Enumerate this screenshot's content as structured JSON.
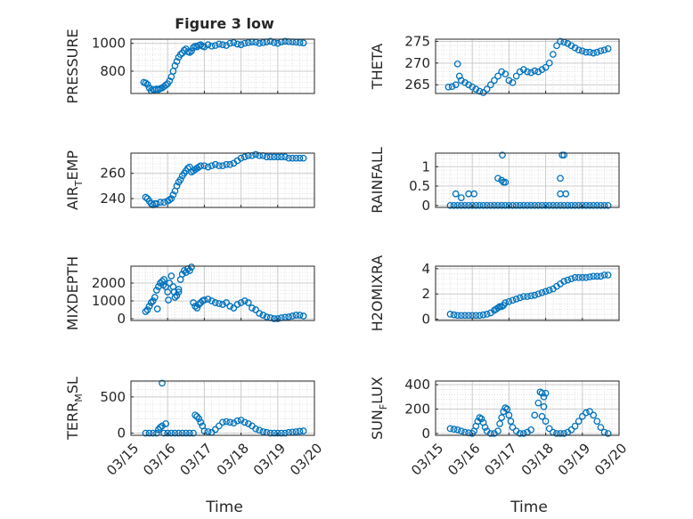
{
  "figure_title": "Figure 3 low",
  "shared_xlabel": "Time",
  "colors": {
    "marker": "#0072BD",
    "axes": "#262626",
    "grid": "#d9d9d9",
    "text": "#262626"
  },
  "chart_data": [
    {
      "type": "scatter",
      "ylabel": "PRESSURE",
      "title": "Figure 3 low",
      "ylim": [
        640,
        1030
      ],
      "yticks": [
        800,
        1000
      ],
      "ytick_labels": [
        "800",
        "1000"
      ],
      "xlim": [
        0,
        5
      ],
      "x": [
        0.35,
        0.4,
        0.45,
        0.5,
        0.55,
        0.6,
        0.65,
        0.7,
        0.75,
        0.8,
        0.85,
        0.9,
        0.95,
        1.0,
        1.05,
        1.1,
        1.15,
        1.2,
        1.25,
        1.3,
        1.35,
        1.4,
        1.45,
        1.5,
        1.55,
        1.6,
        1.65,
        1.7,
        1.75,
        1.8,
        1.85,
        1.9,
        1.95,
        2.0,
        2.1,
        2.2,
        2.3,
        2.4,
        2.5,
        2.6,
        2.7,
        2.8,
        2.9,
        3.0,
        3.1,
        3.2,
        3.3,
        3.4,
        3.5,
        3.6,
        3.7,
        3.8,
        3.9,
        4.0,
        4.1,
        4.2,
        4.3,
        4.4,
        4.5,
        4.6,
        4.7
      ],
      "y": [
        720,
        715,
        705,
        680,
        660,
        670,
        665,
        672,
        668,
        675,
        680,
        690,
        700,
        710,
        730,
        760,
        800,
        840,
        870,
        900,
        920,
        930,
        950,
        960,
        940,
        935,
        945,
        970,
        980,
        975,
        985,
        990,
        980,
        975,
        990,
        980,
        985,
        995,
        990,
        985,
        1000,
        1005,
        995,
        990,
        1000,
        1005,
        1010,
        1008,
        1000,
        1005,
        1010,
        1015,
        1005,
        1000,
        1010,
        1015,
        1012,
        1010,
        1008,
        1005,
        1003
      ]
    },
    {
      "type": "scatter",
      "ylabel": "THETA",
      "ylim": [
        263,
        275.5
      ],
      "yticks": [
        265,
        270,
        275
      ],
      "ytick_labels": [
        "265",
        "270",
        "275"
      ],
      "xlim": [
        0,
        5
      ],
      "x": [
        0.35,
        0.45,
        0.55,
        0.6,
        0.65,
        0.7,
        0.8,
        0.9,
        1.0,
        1.1,
        1.2,
        1.3,
        1.4,
        1.5,
        1.6,
        1.7,
        1.8,
        1.9,
        2.0,
        2.1,
        2.2,
        2.3,
        2.4,
        2.5,
        2.6,
        2.7,
        2.8,
        2.9,
        3.0,
        3.1,
        3.2,
        3.3,
        3.4,
        3.5,
        3.6,
        3.7,
        3.8,
        3.9,
        4.0,
        4.1,
        4.2,
        4.3,
        4.4,
        4.5,
        4.6,
        4.7
      ],
      "y": [
        264.5,
        264.6,
        265,
        269.8,
        267,
        266,
        265.5,
        265,
        264.5,
        264,
        263.5,
        263.2,
        264,
        265,
        266,
        267,
        268,
        267.5,
        266,
        265.5,
        267,
        268,
        268.5,
        268,
        267.8,
        268.2,
        268,
        268.5,
        269,
        270,
        272,
        274,
        275,
        274.8,
        274.5,
        274,
        273.5,
        273,
        272.8,
        272.5,
        272.5,
        272.3,
        272.5,
        272.8,
        273,
        273.3
      ]
    },
    {
      "type": "scatter",
      "ylabel": "AIR_TEMP",
      "ylim": [
        233,
        276
      ],
      "yticks": [
        240,
        260
      ],
      "ytick_labels": [
        "240",
        "260"
      ],
      "xlim": [
        0,
        5
      ],
      "x": [
        0.4,
        0.45,
        0.5,
        0.55,
        0.6,
        0.65,
        0.7,
        0.8,
        0.9,
        1.0,
        1.05,
        1.1,
        1.15,
        1.2,
        1.25,
        1.3,
        1.35,
        1.4,
        1.45,
        1.5,
        1.55,
        1.6,
        1.65,
        1.7,
        1.75,
        1.8,
        1.85,
        1.9,
        2.0,
        2.1,
        2.2,
        2.3,
        2.4,
        2.5,
        2.6,
        2.7,
        2.8,
        2.9,
        3.0,
        3.1,
        3.2,
        3.3,
        3.4,
        3.5,
        3.6,
        3.7,
        3.8,
        3.9,
        4.0,
        4.1,
        4.2,
        4.3,
        4.4,
        4.5,
        4.6,
        4.7
      ],
      "y": [
        241,
        240,
        238,
        236,
        235,
        236,
        236,
        237,
        237,
        238,
        239,
        240,
        243,
        246,
        250,
        253,
        255,
        258,
        260,
        262,
        264,
        265,
        261,
        262,
        263,
        264,
        265,
        266,
        266,
        265,
        266,
        267,
        266,
        266,
        267,
        267,
        268,
        270,
        272,
        273,
        274,
        274,
        275,
        274,
        274,
        273,
        273,
        273,
        273,
        273,
        273,
        272,
        272,
        272,
        272,
        272
      ]
    },
    {
      "type": "scatter",
      "ylabel": "RAINFALL",
      "ylim": [
        -0.05,
        1.35
      ],
      "yticks": [
        0,
        0.5,
        1
      ],
      "ytick_labels": [
        "0",
        "0.5",
        "1"
      ],
      "xlim": [
        0,
        5
      ],
      "x": [
        0.4,
        0.5,
        0.6,
        0.7,
        0.8,
        0.9,
        1.0,
        1.1,
        1.2,
        1.3,
        1.4,
        1.5,
        1.6,
        1.7,
        1.8,
        1.9,
        2.0,
        2.1,
        2.2,
        2.3,
        2.4,
        2.5,
        2.6,
        2.7,
        2.8,
        2.9,
        3.0,
        3.1,
        3.2,
        3.3,
        3.4,
        3.5,
        3.6,
        3.7,
        3.8,
        3.9,
        4.0,
        4.1,
        4.2,
        4.3,
        4.4,
        4.5,
        4.6,
        4.7,
        0.55,
        0.7,
        0.9,
        1.05,
        1.7,
        1.85,
        1.8,
        1.9,
        1.82,
        3.4,
        3.45,
        3.5,
        3.4,
        3.55
      ],
      "y": [
        0,
        0,
        0,
        0,
        0,
        0,
        0,
        0,
        0,
        0,
        0,
        0,
        0,
        0,
        0,
        0,
        0,
        0,
        0,
        0,
        0,
        0,
        0,
        0,
        0,
        0,
        0,
        0,
        0,
        0,
        0,
        0,
        0,
        0,
        0,
        0,
        0,
        0,
        0,
        0,
        0,
        0,
        0,
        0,
        0.3,
        0.2,
        0.3,
        0.3,
        0.7,
        0.6,
        0.65,
        0.6,
        1.3,
        0.7,
        1.3,
        1.3,
        0.3,
        0.3
      ]
    },
    {
      "type": "scatter",
      "ylabel": "MIXDEPTH",
      "ylim": [
        -100,
        2950
      ],
      "yticks": [
        0,
        1000,
        2000
      ],
      "ytick_labels": [
        "0",
        "1000",
        "2000"
      ],
      "xlim": [
        0,
        5
      ],
      "x": [
        0.4,
        0.45,
        0.5,
        0.55,
        0.6,
        0.65,
        0.7,
        0.75,
        0.8,
        0.85,
        0.9,
        0.95,
        1.0,
        1.05,
        1.1,
        1.15,
        1.2,
        1.25,
        1.3,
        1.35,
        1.4,
        1.45,
        1.5,
        1.55,
        1.6,
        1.65,
        1.7,
        1.75,
        1.8,
        1.85,
        1.9,
        1.95,
        2.0,
        2.1,
        2.2,
        2.3,
        2.4,
        2.5,
        2.6,
        2.7,
        2.8,
        2.9,
        3.0,
        3.1,
        3.2,
        3.3,
        3.4,
        3.5,
        3.6,
        3.7,
        3.8,
        3.9,
        4.0,
        4.1,
        4.2,
        4.3,
        4.4,
        4.5,
        4.6,
        4.7,
        0.72,
        0.88,
        1.02,
        1.18,
        1.3
      ],
      "y": [
        400,
        500,
        700,
        900,
        1000,
        1200,
        1600,
        1800,
        2000,
        2100,
        2200,
        1800,
        1500,
        2000,
        2400,
        1800,
        1200,
        1300,
        1500,
        2200,
        2500,
        2700,
        2600,
        2800,
        2700,
        2900,
        900,
        700,
        600,
        800,
        900,
        1000,
        1050,
        1100,
        1000,
        900,
        850,
        800,
        900,
        700,
        600,
        800,
        900,
        1000,
        900,
        600,
        500,
        300,
        200,
        100,
        50,
        0,
        0,
        50,
        80,
        100,
        150,
        200,
        200,
        150,
        550,
        1900,
        1050,
        1500,
        1650
      ]
    },
    {
      "type": "scatter",
      "ylabel": "H2OMIXRA",
      "ylim": [
        -0.1,
        4.2
      ],
      "yticks": [
        0,
        2,
        4
      ],
      "ytick_labels": [
        "0",
        "2",
        "4"
      ],
      "xlim": [
        0,
        5
      ],
      "x": [
        0.4,
        0.5,
        0.6,
        0.7,
        0.8,
        0.9,
        1.0,
        1.1,
        1.2,
        1.3,
        1.4,
        1.5,
        1.6,
        1.65,
        1.7,
        1.75,
        1.8,
        1.85,
        1.9,
        2.0,
        2.1,
        2.2,
        2.3,
        2.4,
        2.5,
        2.6,
        2.7,
        2.8,
        2.9,
        3.0,
        3.1,
        3.2,
        3.3,
        3.4,
        3.5,
        3.6,
        3.7,
        3.8,
        3.9,
        4.0,
        4.1,
        4.2,
        4.3,
        4.4,
        4.5,
        4.6,
        4.7
      ],
      "y": [
        0.4,
        0.35,
        0.3,
        0.3,
        0.3,
        0.3,
        0.3,
        0.3,
        0.3,
        0.35,
        0.4,
        0.5,
        0.7,
        0.8,
        0.9,
        1.0,
        1.0,
        1.1,
        1.3,
        1.4,
        1.5,
        1.6,
        1.7,
        1.8,
        1.8,
        1.85,
        1.9,
        2.0,
        2.1,
        2.2,
        2.3,
        2.4,
        2.6,
        2.8,
        3.0,
        3.1,
        3.2,
        3.3,
        3.3,
        3.3,
        3.3,
        3.35,
        3.4,
        3.4,
        3.4,
        3.5,
        3.5
      ]
    },
    {
      "type": "scatter",
      "ylabel": "TERR_MSL",
      "ylim": [
        -30,
        720
      ],
      "yticks": [
        0,
        500
      ],
      "ytick_labels": [
        "0",
        "500"
      ],
      "xlim": [
        0,
        5
      ],
      "xticks": [
        0,
        1,
        2,
        3,
        4,
        5
      ],
      "xtick_labels": [
        "03/15",
        "03/16",
        "03/17",
        "03/18",
        "03/19",
        "03/20"
      ],
      "x": [
        0.4,
        0.5,
        0.6,
        0.7,
        0.75,
        0.8,
        0.85,
        0.9,
        1.0,
        1.1,
        1.2,
        1.3,
        1.4,
        1.5,
        1.6,
        1.7,
        1.75,
        1.8,
        1.85,
        1.9,
        1.95,
        2.0,
        2.1,
        2.2,
        2.3,
        2.4,
        2.5,
        2.6,
        2.7,
        2.8,
        2.9,
        3.0,
        3.1,
        3.2,
        3.3,
        3.4,
        3.5,
        3.6,
        3.7,
        3.8,
        3.9,
        4.0,
        4.1,
        4.2,
        4.3,
        4.4,
        4.5,
        4.6,
        4.7,
        0.85,
        0.95,
        0.8
      ],
      "y": [
        0,
        0,
        0,
        0,
        50,
        80,
        100,
        0,
        0,
        0,
        0,
        0,
        0,
        0,
        0,
        0,
        250,
        230,
        200,
        150,
        100,
        30,
        20,
        10,
        50,
        100,
        150,
        160,
        150,
        140,
        170,
        180,
        150,
        130,
        100,
        60,
        40,
        20,
        10,
        0,
        0,
        0,
        0,
        0,
        10,
        15,
        20,
        25,
        30,
        690,
        130,
        80
      ]
    },
    {
      "type": "scatter",
      "ylabel": "SUN_FLUX",
      "ylim": [
        -15,
        430
      ],
      "yticks": [
        0,
        200,
        400
      ],
      "ytick_labels": [
        "0",
        "200",
        "400"
      ],
      "xlim": [
        0,
        5
      ],
      "xticks": [
        0,
        1,
        2,
        3,
        4,
        5
      ],
      "xtick_labels": [
        "03/15",
        "03/16",
        "03/17",
        "03/18",
        "03/19",
        "03/20"
      ],
      "x": [
        0.4,
        0.5,
        0.6,
        0.7,
        0.8,
        0.9,
        1.0,
        1.05,
        1.1,
        1.15,
        1.2,
        1.25,
        1.3,
        1.35,
        1.4,
        1.5,
        1.6,
        1.7,
        1.75,
        1.8,
        1.85,
        1.9,
        1.95,
        2.0,
        2.05,
        2.1,
        2.2,
        2.3,
        2.4,
        2.5,
        2.6,
        2.7,
        2.8,
        2.85,
        2.9,
        2.95,
        3.0,
        3.1,
        3.2,
        3.3,
        3.4,
        3.5,
        3.6,
        3.7,
        3.8,
        3.9,
        4.0,
        4.1,
        4.2,
        4.3,
        4.4,
        4.5,
        4.6,
        4.7,
        2.9,
        3.0,
        2.95
      ],
      "y": [
        40,
        35,
        30,
        20,
        10,
        5,
        0,
        20,
        60,
        100,
        130,
        120,
        90,
        50,
        20,
        0,
        0,
        20,
        80,
        130,
        180,
        210,
        200,
        150,
        100,
        50,
        20,
        0,
        0,
        10,
        30,
        150,
        250,
        340,
        330,
        220,
        100,
        40,
        10,
        0,
        0,
        0,
        10,
        30,
        60,
        100,
        140,
        170,
        180,
        150,
        100,
        50,
        10,
        0,
        140,
        330,
        300
      ]
    }
  ]
}
